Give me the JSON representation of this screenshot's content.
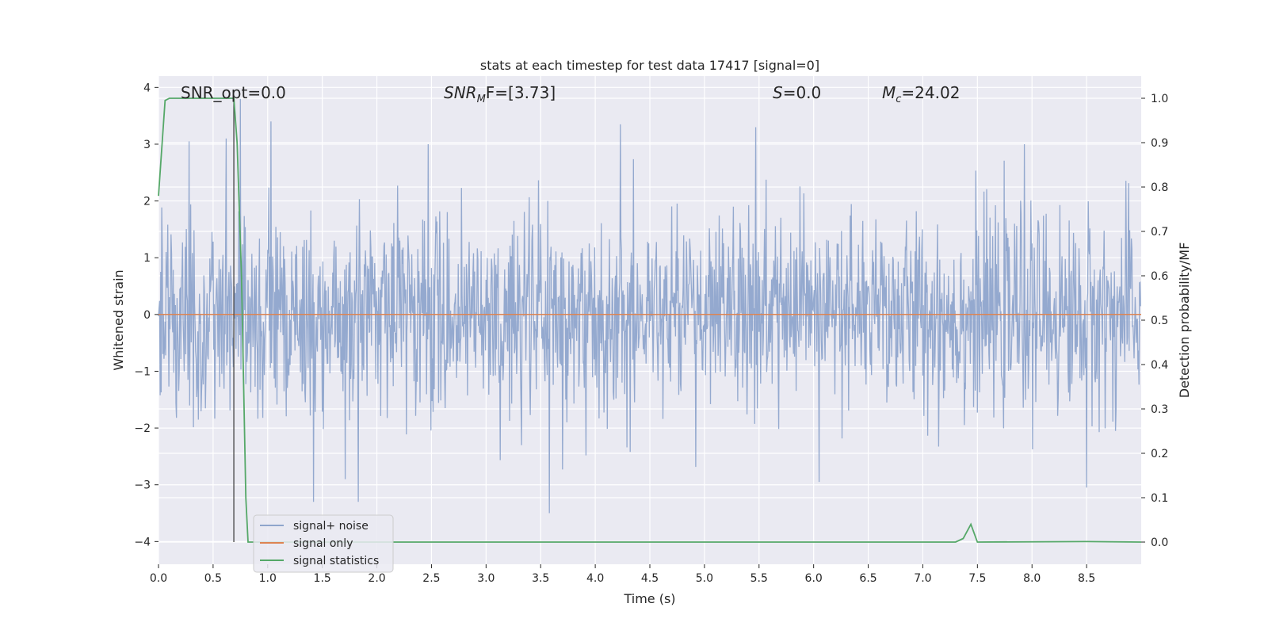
{
  "chart_data": {
    "type": "line",
    "title": "stats at each timestep for test data 17417 [signal=0]",
    "xlabel": "Time (s)",
    "ylabel": "Whitened strain",
    "y2label": "Detection probability/MF",
    "xlim": [
      0,
      9
    ],
    "ylim": [
      -4.4,
      4.2
    ],
    "y2lim": [
      -0.05,
      1.05
    ],
    "x_ticks": [
      0.0,
      0.5,
      1.0,
      1.5,
      2.0,
      2.5,
      3.0,
      3.5,
      4.0,
      4.5,
      5.0,
      5.5,
      6.0,
      6.5,
      7.0,
      7.5,
      8.0,
      8.5
    ],
    "x_tick_labels": [
      "0.0",
      "0.5",
      "1.0",
      "1.5",
      "2.0",
      "2.5",
      "3.0",
      "3.5",
      "4.0",
      "4.5",
      "5.0",
      "5.5",
      "6.0",
      "6.5",
      "7.0",
      "7.5",
      "8.0",
      "8.5"
    ],
    "y_ticks": [
      -4,
      -3,
      -2,
      -1,
      0,
      1,
      2,
      3,
      4
    ],
    "y_tick_labels": [
      "−4",
      "−3",
      "−2",
      "−1",
      "0",
      "1",
      "2",
      "3",
      "4"
    ],
    "y2_ticks": [
      0.0,
      0.1,
      0.2,
      0.3,
      0.4,
      0.5,
      0.6,
      0.7,
      0.8,
      0.9,
      1.0
    ],
    "y2_tick_labels": [
      "0.0",
      "0.1",
      "0.2",
      "0.3",
      "0.4",
      "0.5",
      "0.6",
      "0.7",
      "0.8",
      "0.9",
      "1.0"
    ],
    "grid": true,
    "legend_position": "lower-left",
    "annotations": {
      "snr_opt": "SNR_opt=0.0",
      "snr_mf_sym": "SNR",
      "snr_mf_sub": "M",
      "snr_mf_rest": "F=[3.73]",
      "s_sym": "S",
      "s_rest": "=0.0",
      "mc_sym": "M",
      "mc_sub": "c",
      "mc_rest": "=24.02"
    },
    "vertical_line_x": 0.69,
    "series": [
      {
        "name": "signal+ noise",
        "color": "#8fa5cc",
        "kind": "noise",
        "amplitude_sigma": 0.85,
        "n_samples": 1800,
        "peaks": [
          [
            0.07,
            1.1
          ],
          [
            0.28,
            3.05
          ],
          [
            0.62,
            3.1
          ],
          [
            0.75,
            3.8
          ],
          [
            1.03,
            3.4
          ],
          [
            1.42,
            -3.3
          ],
          [
            1.83,
            -3.3
          ],
          [
            2.47,
            3.0
          ],
          [
            3.58,
            -3.5
          ],
          [
            4.23,
            3.35
          ],
          [
            5.47,
            3.3
          ],
          [
            6.05,
            -2.95
          ],
          [
            7.93,
            3.0
          ],
          [
            8.5,
            -3.05
          ]
        ]
      },
      {
        "name": "signal only",
        "color": "#dd8452",
        "x": [
          0.0,
          9.0
        ],
        "y": [
          0.0,
          0.0
        ]
      },
      {
        "name": "signal statistics",
        "color": "#55a868",
        "axis": "right",
        "x": [
          0.0,
          0.06,
          0.1,
          0.2,
          0.4,
          0.6,
          0.69,
          0.72,
          0.76,
          0.8,
          0.82,
          7.3,
          7.37,
          7.44,
          7.5,
          8.5,
          9.0
        ],
        "y": [
          0.78,
          0.995,
          1.0,
          1.0,
          1.0,
          1.0,
          1.0,
          0.9,
          0.6,
          0.1,
          0.0,
          0.0,
          0.008,
          0.04,
          0.0,
          0.001,
          0.0
        ]
      }
    ]
  }
}
